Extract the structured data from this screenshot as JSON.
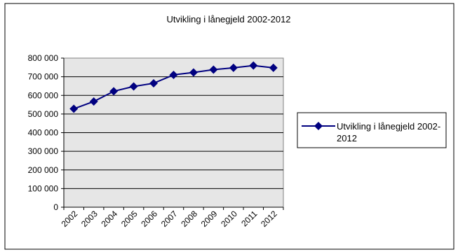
{
  "chart_data": {
    "type": "line",
    "title": "Utvikling i lånegjeld 2002-2012",
    "xlabel": "",
    "ylabel": "",
    "categories": [
      "2002",
      "2003",
      "2004",
      "2005",
      "2006",
      "2007",
      "2008",
      "2009",
      "2010",
      "2011",
      "2012"
    ],
    "ylim": [
      0,
      800000
    ],
    "yticks": [
      0,
      100000,
      200000,
      300000,
      400000,
      500000,
      600000,
      700000,
      800000
    ],
    "ytick_labels": [
      "0",
      "100 000",
      "200 000",
      "300 000",
      "400 000",
      "500 000",
      "600 000",
      "700 000",
      "800 000"
    ],
    "grid": true,
    "legend_position": "right",
    "series": [
      {
        "name": "Utvikling i lånegjeld 2002-2012",
        "legend_lines": [
          "Utvikling i lånegjeld 2002-",
          "2012"
        ],
        "color": "#000080",
        "marker": "diamond",
        "values": [
          528000,
          567000,
          622000,
          648000,
          665000,
          710000,
          723000,
          738000,
          748000,
          760000,
          748000
        ]
      }
    ],
    "plot_background": "#e6e6e6"
  }
}
